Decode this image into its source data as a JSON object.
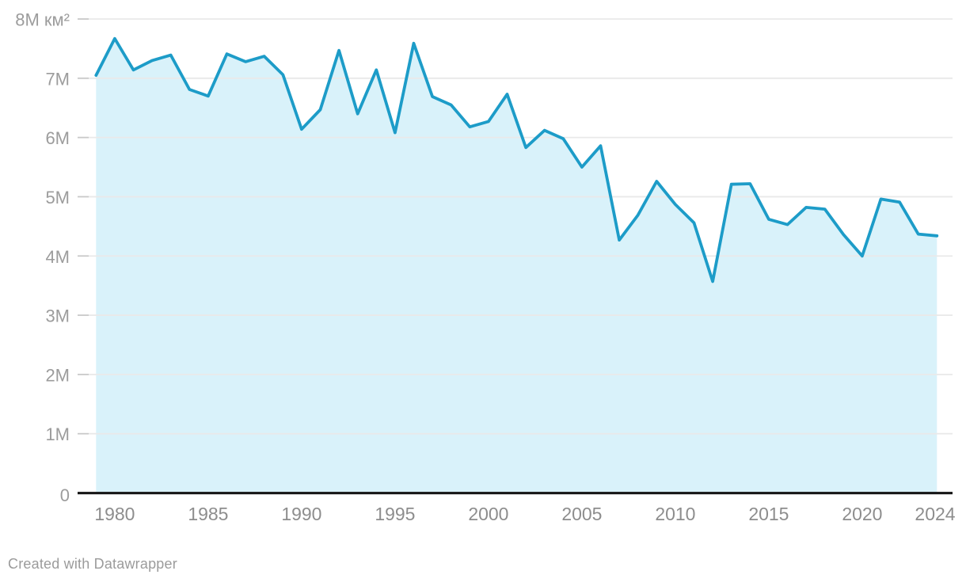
{
  "footer": {
    "attribution": "Created with Datawrapper"
  },
  "colors": {
    "line": "#1d9cc8",
    "area_fill": "#d9f2fa",
    "gridline": "#e9e9e9",
    "tick_mark": "#c9c9c9",
    "axis_baseline": "#161616",
    "y_label_text": "#9c9c9c",
    "x_label_text": "#8d8d8d",
    "footer_text": "#9b9b9b",
    "background": "#ffffff"
  },
  "chart_data": {
    "type": "area",
    "unit": "км²",
    "x": [
      1979,
      1980,
      1981,
      1982,
      1983,
      1984,
      1985,
      1986,
      1987,
      1988,
      1989,
      1990,
      1991,
      1992,
      1993,
      1994,
      1995,
      1996,
      1997,
      1998,
      1999,
      2000,
      2001,
      2002,
      2003,
      2004,
      2005,
      2006,
      2007,
      2008,
      2009,
      2010,
      2011,
      2012,
      2013,
      2014,
      2015,
      2016,
      2017,
      2018,
      2019,
      2020,
      2021,
      2022,
      2023,
      2024
    ],
    "values": [
      7.05,
      7.67,
      7.14,
      7.3,
      7.39,
      6.81,
      6.7,
      7.41,
      7.28,
      7.37,
      7.06,
      6.14,
      6.47,
      7.47,
      6.4,
      7.14,
      6.08,
      7.59,
      6.69,
      6.55,
      6.18,
      6.27,
      6.73,
      5.83,
      6.12,
      5.98,
      5.5,
      5.86,
      4.27,
      4.69,
      5.26,
      4.87,
      4.56,
      3.57,
      5.21,
      5.22,
      4.62,
      4.53,
      4.82,
      4.79,
      4.36,
      4.0,
      4.96,
      4.91,
      4.37,
      4.34
    ],
    "xlim": [
      1979,
      2024
    ],
    "ylim": [
      0,
      8
    ],
    "grid": true,
    "legend": "none",
    "yticks": [
      {
        "value": 0,
        "label": "0"
      },
      {
        "value": 1,
        "label": "1M"
      },
      {
        "value": 2,
        "label": "2M"
      },
      {
        "value": 3,
        "label": "3M"
      },
      {
        "value": 4,
        "label": "4M"
      },
      {
        "value": 5,
        "label": "5M"
      },
      {
        "value": 6,
        "label": "6M"
      },
      {
        "value": 7,
        "label": "7M"
      },
      {
        "value": 8,
        "label": "8M км²"
      }
    ],
    "xticks": [
      {
        "value": 1980,
        "label": "1980"
      },
      {
        "value": 1985,
        "label": "1985"
      },
      {
        "value": 1990,
        "label": "1990"
      },
      {
        "value": 1995,
        "label": "1995"
      },
      {
        "value": 2000,
        "label": "2000"
      },
      {
        "value": 2005,
        "label": "2005"
      },
      {
        "value": 2010,
        "label": "2010"
      },
      {
        "value": 2015,
        "label": "2015"
      },
      {
        "value": 2020,
        "label": "2020"
      },
      {
        "value": 2024,
        "label": "2024"
      }
    ]
  }
}
